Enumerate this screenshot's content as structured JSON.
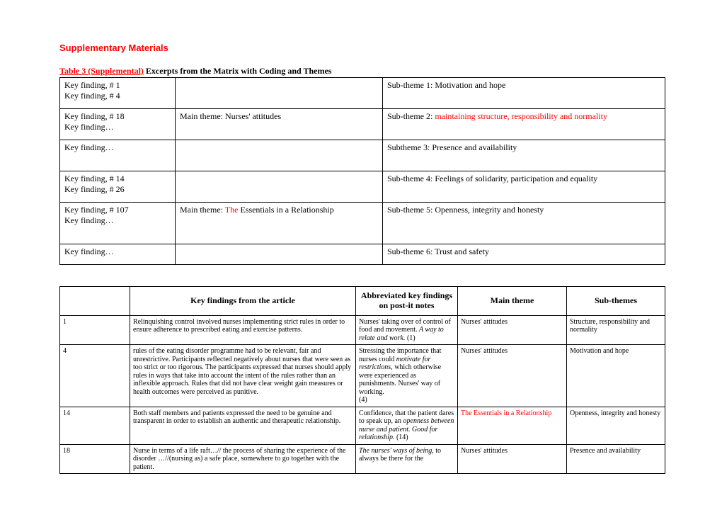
{
  "heading": "Supplementary Materials",
  "table_title_red": "Table 3 (Supplemental)",
  "table_title_black": " Excerpts from the Matrix with Coding and Themes",
  "t1": {
    "r1c1a": "Key finding, # 1",
    "r1c1b": "Key finding, # 4",
    "r1c2": "",
    "r1c3": "Sub-theme 1: Motivation and hope",
    "r2c1a": "Key finding, # 18",
    "r2c1b": "Key finding…",
    "r2c2": "Main theme: Nurses' attitudes",
    "r2c3_pre": "Sub-theme 2: ",
    "r2c3_red": "maintaining structure, responsibility and normality",
    "r3c1": "Key finding…",
    "r3c2": "",
    "r3c3": "Subtheme 3: Presence and availability",
    "r4c1a": "Key finding, # 14",
    "r4c1b": "Key finding, # 26",
    "r4c2": "",
    "r4c3": "Sub-theme 4: Feelings of solidarity, participation and equality",
    "r5c1a": "Key finding, # 107",
    "r5c1b": "Key finding…",
    "r5c2_pre": "Main theme: ",
    "r5c2_red": "The",
    "r5c2_post": " Essentials in a Relationship",
    "r5c3": "Sub-theme 5: Openness, integrity and honesty",
    "r6c1": "Key finding…",
    "r6c2": "",
    "r6c3": "Sub-theme 6: Trust and safety"
  },
  "t2h": {
    "c0": "",
    "c1": "Key findings from the article",
    "c2": "Abbreviated key findings on post-it notes",
    "c3": "Main theme",
    "c4": "Sub-themes"
  },
  "t2r1": {
    "c0": "1",
    "c1": "Relinquishing control involved nurses implementing strict rules in order to ensure adherence to prescribed eating and exercise patterns.",
    "c2a": "Nurses' taking over of control of food and movement. ",
    "c2b": " A way to relate and work.",
    "c2c": " (1)",
    "c3": "Nurses' attitudes",
    "c4": "Structure, responsibility and normality"
  },
  "t2r2": {
    "c0": "4",
    "c1": "rules of the eating disorder programme had to be relevant, fair and unrestrictive. Participants reflected negatively about nurses that were seen as too strict or too rigorous. The participants expressed that nurses should apply rules in ways that take into account the intent of the rules rather than an inflexible approach. Rules that did not have clear weight gain measures or health outcomes were perceived as punitive.",
    "c2a": "Stressing the importance that nurses could ",
    "c2b": "motivate for restrictions",
    "c2c": ", which otherwise were experienced as punishments. Nurses' way of working.",
    "c2d": "(4)",
    "c3": "Nurses' attitudes",
    "c4": "Motivation and hope"
  },
  "t2r3": {
    "c0": "14",
    "c1": "Both staff members and patients expressed the need to be genuine and transparent in order to establish an authentic and therapeutic relationship.",
    "c2a": "Confidence, that the patient dares to speak up, an ",
    "c2b": "openness between nurse and patient. Good for relationship.",
    "c2c": " (14)",
    "c3_red": "The Essentials in a Relationship",
    "c4": "Openness, integrity and honesty"
  },
  "t2r4": {
    "c0": "18",
    "c1": "Nurse in terms of a life raft…// the process of sharing the experience of the disorder …//(nursing as) a safe place, somewhere to go together with the patient.",
    "c2a": "The nurses' ways of being,",
    "c2b": " to always be there for the",
    "c3": "Nurses' attitudes",
    "c4": "Presence and availability"
  }
}
